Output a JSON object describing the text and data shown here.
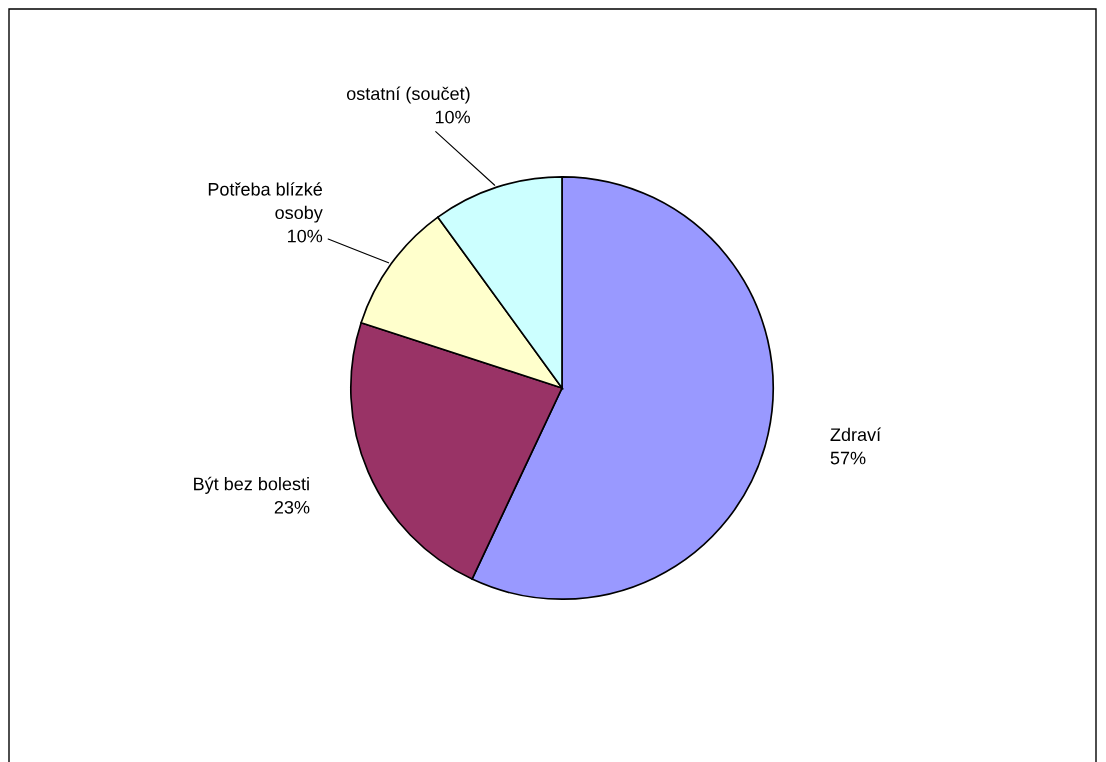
{
  "chart_data": {
    "type": "pie",
    "categories": [
      "Zdraví",
      "Být bez bolesti",
      "Potřeba blízké\nosoby",
      "ostatní (součet)"
    ],
    "values": [
      57,
      23,
      10,
      10
    ],
    "value_labels": [
      "57%",
      "23%",
      "10%",
      "10%"
    ],
    "colors": [
      "#9999ff",
      "#993366",
      "#ffffcc",
      "#ccffff"
    ],
    "legend": false
  }
}
